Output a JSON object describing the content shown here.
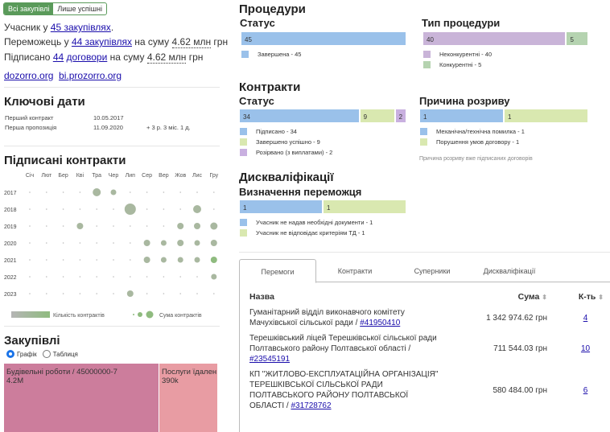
{
  "filter": {
    "all": "Всі закупівлі",
    "success": "Лише успішні"
  },
  "summary": {
    "l1_pre": "Учасник у ",
    "l1_link": "45 закупівлях",
    "l1_post": ".",
    "l2_pre": "Переможець у ",
    "l2_link": "44 закупівлях",
    "l2_mid": " на суму ",
    "l2_sum": "4.62 млн",
    "l2_post": " грн",
    "l3_pre": "Підписано ",
    "l3_link1": "44",
    "l3_link2": "договори",
    "l3_mid": " на суму ",
    "l3_sum": "4.62 млн",
    "l3_post": " грн",
    "link1": "dozorro.org",
    "link2": "bi.prozorro.org"
  },
  "key_dates": {
    "title": "Ключові дати",
    "rows": [
      {
        "label": "Перший контракт",
        "date": "10.05.2017",
        "extra": ""
      },
      {
        "label": "Перша пропозиція",
        "date": "11.09.2020",
        "extra": "+ 3 р. 3 міс. 1 д."
      }
    ]
  },
  "signed": {
    "title": "Підписані контракти",
    "months": [
      "Січ",
      "Лют",
      "Бер",
      "Кві",
      "Тра",
      "Чер",
      "Лип",
      "Сер",
      "Вер",
      "Жов",
      "Лис",
      "Гру"
    ],
    "years": [
      "2017",
      "2018",
      "2019",
      "2020",
      "2021",
      "2022",
      "2023"
    ],
    "dots": [
      [
        0,
        4,
        5
      ],
      [
        0,
        5,
        3.5
      ],
      [
        1,
        6,
        7
      ],
      [
        1,
        10,
        5
      ],
      [
        2,
        3,
        4
      ],
      [
        2,
        9,
        4
      ],
      [
        2,
        10,
        4
      ],
      [
        2,
        11,
        4.5
      ],
      [
        3,
        7,
        4
      ],
      [
        3,
        8,
        3.5
      ],
      [
        3,
        9,
        4
      ],
      [
        3,
        10,
        3.5
      ],
      [
        3,
        11,
        4
      ],
      [
        4,
        7,
        4
      ],
      [
        4,
        8,
        3.5
      ],
      [
        4,
        9,
        3.5
      ],
      [
        4,
        10,
        3.5
      ],
      [
        4,
        11,
        4
      ],
      [
        5,
        11,
        3.5
      ],
      [
        6,
        6,
        4
      ]
    ],
    "legend_count": "Кількість контрактів",
    "legend_sum": "Сума контрактів"
  },
  "purchases": {
    "title": "Закупівлі",
    "radio_chart": "Графік",
    "radio_table": "Таблиця",
    "tiles": [
      {
        "label": "Будівельні роботи / 45000000-7",
        "value": "4.2M",
        "color": "#cc7d9c"
      },
      {
        "label": "Послуги їдален",
        "value": "390k",
        "color": "#e89ca3"
      }
    ]
  },
  "procedures": {
    "title": "Процедури",
    "status": {
      "title": "Статус",
      "bars": [
        {
          "v": 45,
          "label": "Завершена - 45",
          "color": "#9ac1ea"
        }
      ]
    },
    "type": {
      "title": "Тип процедури",
      "bars": [
        {
          "v": 40,
          "label": "Неконкурентні - 40",
          "color": "#c9b4d8"
        },
        {
          "v": 5,
          "label": "Конкурентні - 5",
          "color": "#b5d3b0"
        }
      ]
    }
  },
  "contracts": {
    "title": "Контракти",
    "status": {
      "title": "Статус",
      "bars": [
        {
          "v": 34,
          "label": "Підписано - 34",
          "color": "#9ac1ea"
        },
        {
          "v": 9,
          "label": "Завершено успішно - 9",
          "color": "#d9e8b0"
        },
        {
          "v": 2,
          "label": "Розірвано (з виплатами) - 2",
          "color": "#c9b0e0"
        }
      ]
    },
    "reason": {
      "title": "Причина розриву",
      "bars": [
        {
          "v": 1,
          "label": "Механічна/технічна помилка - 1",
          "color": "#9ac1ea"
        },
        {
          "v": 1,
          "label": "Порушення умов договору - 1",
          "color": "#d9e8b0"
        }
      ],
      "note": "Причина розриву вже підписаних договорів"
    }
  },
  "disq": {
    "title": "Дискваліфікації",
    "sub": "Визначення переможця",
    "bars": [
      {
        "v": 1,
        "label": "Учасник не надав необхідні документи - 1",
        "color": "#9ac1ea"
      },
      {
        "v": 1,
        "label": "Учасник не відповідає критеріям ТД - 1",
        "color": "#d9e8b0"
      }
    ]
  },
  "tabs": [
    "Перемоги",
    "Контракти",
    "Суперники",
    "Дискваліфікації"
  ],
  "table": {
    "headers": [
      "Назва",
      "Сума",
      "К-ть"
    ],
    "rows": [
      {
        "name": "Гуманітарний відділ виконавчого комітету Мачухівської сільської ради / ",
        "id": "#41950410",
        "sum": "1 342 974.62 грн",
        "count": "4"
      },
      {
        "name": "Терешківський ліцей Терешківської сільської ради Полтавського району Полтавської області / ",
        "id": "#23545191",
        "sum": "711 544.03 грн",
        "count": "10"
      },
      {
        "name": "КП \"ЖИТЛОВО-ЕКСПЛУАТАЦІЙНА ОРГАНІЗАЦІЯ\" ТЕРЕШКІВСЬКОЇ СІЛЬСЬКОЇ РАДИ ПОЛТАВСЬКОГО РАЙОНУ ПОЛТАВСЬКОЇ ОБЛАСТІ / ",
        "id": "#31728762",
        "sum": "580 484.00 грн",
        "count": "6"
      }
    ]
  }
}
